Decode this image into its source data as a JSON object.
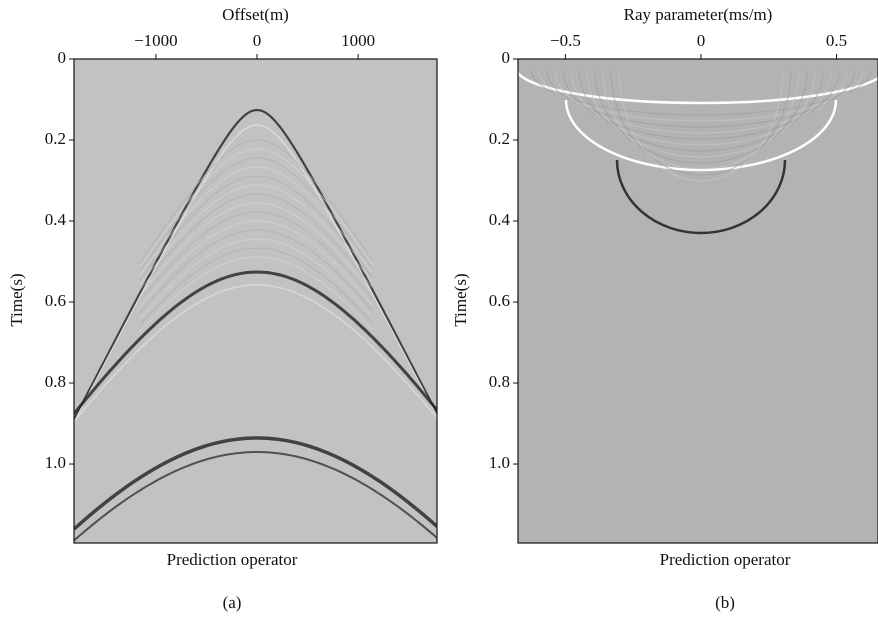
{
  "chart_data": [
    {
      "type": "seismic",
      "xlabel": "Offset(m)",
      "ylabel": "Time(s)",
      "title": "Prediction operator",
      "caption": "(a)",
      "xlim": [
        -1810,
        1780
      ],
      "ylim": [
        0,
        1.195
      ],
      "xticks": [
        {
          "value": -1000,
          "label": "−1000"
        },
        0,
        1000
      ],
      "yticks": [
        0,
        0.2,
        0.4,
        0.6,
        0.8,
        {
          "value": 1,
          "label": "1.0"
        }
      ],
      "x_axis": "top",
      "y_inverted": true,
      "background": "#c2c2c2"
    },
    {
      "type": "seismic",
      "xlabel": "Ray parameter(ms/m)",
      "ylabel": "Time(s)",
      "title": "Prediction operator",
      "caption": "(b)",
      "xlim": [
        -0.675,
        0.653
      ],
      "ylim": [
        0,
        1.195
      ],
      "xticks": [
        {
          "value": -0.5,
          "label": "−0.5"
        },
        0,
        0.5
      ],
      "yticks": [
        0,
        0.2,
        0.4,
        0.6,
        0.8,
        {
          "value": 1,
          "label": "1.0"
        }
      ],
      "x_axis": "top",
      "y_inverted": true,
      "background": "#b3b3b3"
    }
  ]
}
